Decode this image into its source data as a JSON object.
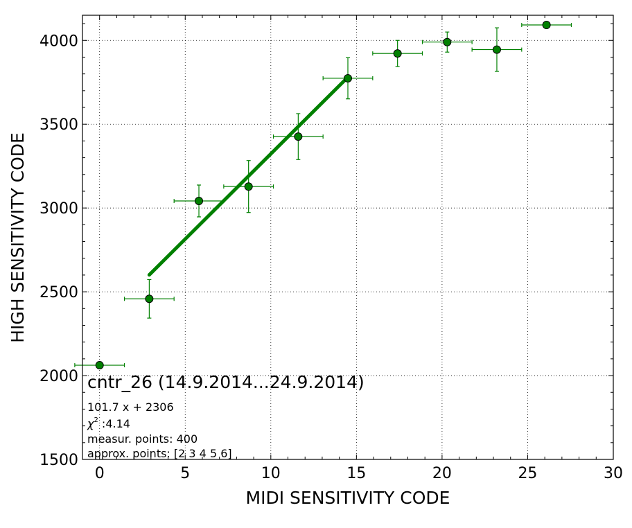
{
  "chart_data": {
    "type": "scatter",
    "title": "cntr_26 (14.9.2014...24.9.2014)",
    "xlabel": "MIDI SENSITIVITY CODE",
    "ylabel": "HIGH SENSITIVITY CODE",
    "xlim": [
      -1,
      30
    ],
    "ylim": [
      1500,
      4150
    ],
    "x_ticks": [
      0,
      5,
      10,
      15,
      20,
      25,
      30
    ],
    "y_ticks": [
      1500,
      2000,
      2500,
      3000,
      3500,
      4000
    ],
    "x_tick_labels": [
      "0",
      "5",
      "10",
      "15",
      "20",
      "25",
      "30"
    ],
    "y_tick_labels": [
      "1500",
      "2000",
      "2500",
      "3000",
      "3500",
      "4000"
    ],
    "grid": true,
    "colors": {
      "points": "#008000",
      "edge": "#000000",
      "fit": "#008000",
      "errorbars": "#008000"
    },
    "series": [
      {
        "points": [
          {
            "x": 0.0,
            "y": 2062,
            "xerr": 1.45,
            "yerr": 20
          },
          {
            "x": 2.9,
            "y": 2458,
            "xerr": 1.45,
            "yerr": 115
          },
          {
            "x": 5.8,
            "y": 3042,
            "xerr": 1.45,
            "yerr": 95
          },
          {
            "x": 8.7,
            "y": 3128,
            "xerr": 1.45,
            "yerr": 155
          },
          {
            "x": 11.6,
            "y": 3426,
            "xerr": 1.45,
            "yerr": 137
          },
          {
            "x": 14.5,
            "y": 3774,
            "xerr": 1.45,
            "yerr": 123
          },
          {
            "x": 17.4,
            "y": 3922,
            "xerr": 1.45,
            "yerr": 78
          },
          {
            "x": 20.3,
            "y": 3990,
            "xerr": 1.45,
            "yerr": 60
          },
          {
            "x": 23.2,
            "y": 3945,
            "xerr": 1.45,
            "yerr": 130
          },
          {
            "x": 26.1,
            "y": 4092,
            "xerr": 1.45,
            "yerr": 10
          }
        ]
      }
    ],
    "fit_line": {
      "slope": 101.7,
      "intercept": 2306,
      "x_range": [
        2.9,
        14.5
      ]
    },
    "annotations": {
      "equation": "101.7 x + 2306",
      "chi2_symbol": "χ",
      "chi2_sup": "2",
      "chi2_value": " :4.14",
      "measur_points": "measur. points: 400",
      "approx_points": "approx. points: [2 3 4 5 6]"
    }
  }
}
